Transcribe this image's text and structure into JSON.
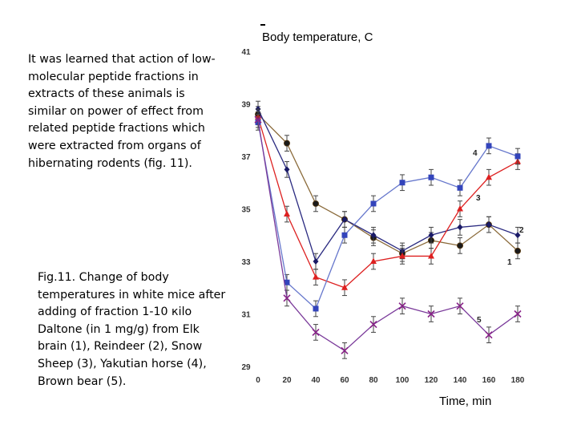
{
  "intro_text": "It was learned that action of low-molecular peptide fractions in extracts of these animals is similar on power of effect from related peptide fractions which were extracted from organs of hibernating rodents (fig. 11).",
  "caption_text": "Fig.11. Change of body temperatures in white mice after adding of fraction 1-10 кilo Daltone (in 1 mg/g) from Elk brain (1), Reindeer (2), Snow Sheep (3), Yakutian horse (4), Brown bear (5).",
  "chart_data": {
    "type": "line",
    "ylabel": "Body temperature, C",
    "xlabel": "Time, min",
    "x": [
      0,
      20,
      40,
      60,
      80,
      100,
      120,
      140,
      160,
      180
    ],
    "ylim": [
      29,
      41
    ],
    "xlim": [
      0,
      180
    ],
    "yticks": [
      29,
      31,
      33,
      35,
      37,
      39,
      41
    ],
    "xticks": [
      0,
      20,
      40,
      60,
      80,
      100,
      120,
      140,
      160,
      180
    ],
    "grid": false,
    "series": [
      {
        "label": "1",
        "color": "#3a2a10",
        "fill": "#1a1a1a",
        "line": "#8a6a3a",
        "marker": "circle",
        "values": [
          38.6,
          37.5,
          35.2,
          34.6,
          33.9,
          33.3,
          33.8,
          33.6,
          34.4,
          33.4
        ]
      },
      {
        "label": "2",
        "color": "#1a1a66",
        "fill": "#1a1a66",
        "line": "#2a2a80",
        "marker": "diamond",
        "values": [
          38.8,
          36.5,
          33.0,
          34.6,
          34.0,
          33.4,
          34.0,
          34.3,
          34.4,
          34.0
        ]
      },
      {
        "label": "3",
        "color": "#dd2020",
        "fill": "#dd2020",
        "line": "#dd2020",
        "marker": "triangle",
        "values": [
          38.5,
          34.8,
          32.4,
          32.0,
          33.0,
          33.2,
          33.2,
          35.0,
          36.2,
          36.8
        ]
      },
      {
        "label": "4",
        "color": "#3344bb",
        "fill": "#3344bb",
        "line": "#6677cc",
        "marker": "square",
        "values": [
          38.3,
          32.2,
          31.2,
          34.0,
          35.2,
          36.0,
          36.2,
          35.8,
          37.4,
          37.0
        ]
      },
      {
        "label": "5",
        "color": "#882288",
        "fill": "#882288",
        "line": "#7a3a9a",
        "marker": "x",
        "values": [
          38.4,
          31.6,
          30.3,
          29.6,
          30.6,
          31.3,
          31.0,
          31.3,
          30.2,
          31.0
        ]
      }
    ]
  }
}
